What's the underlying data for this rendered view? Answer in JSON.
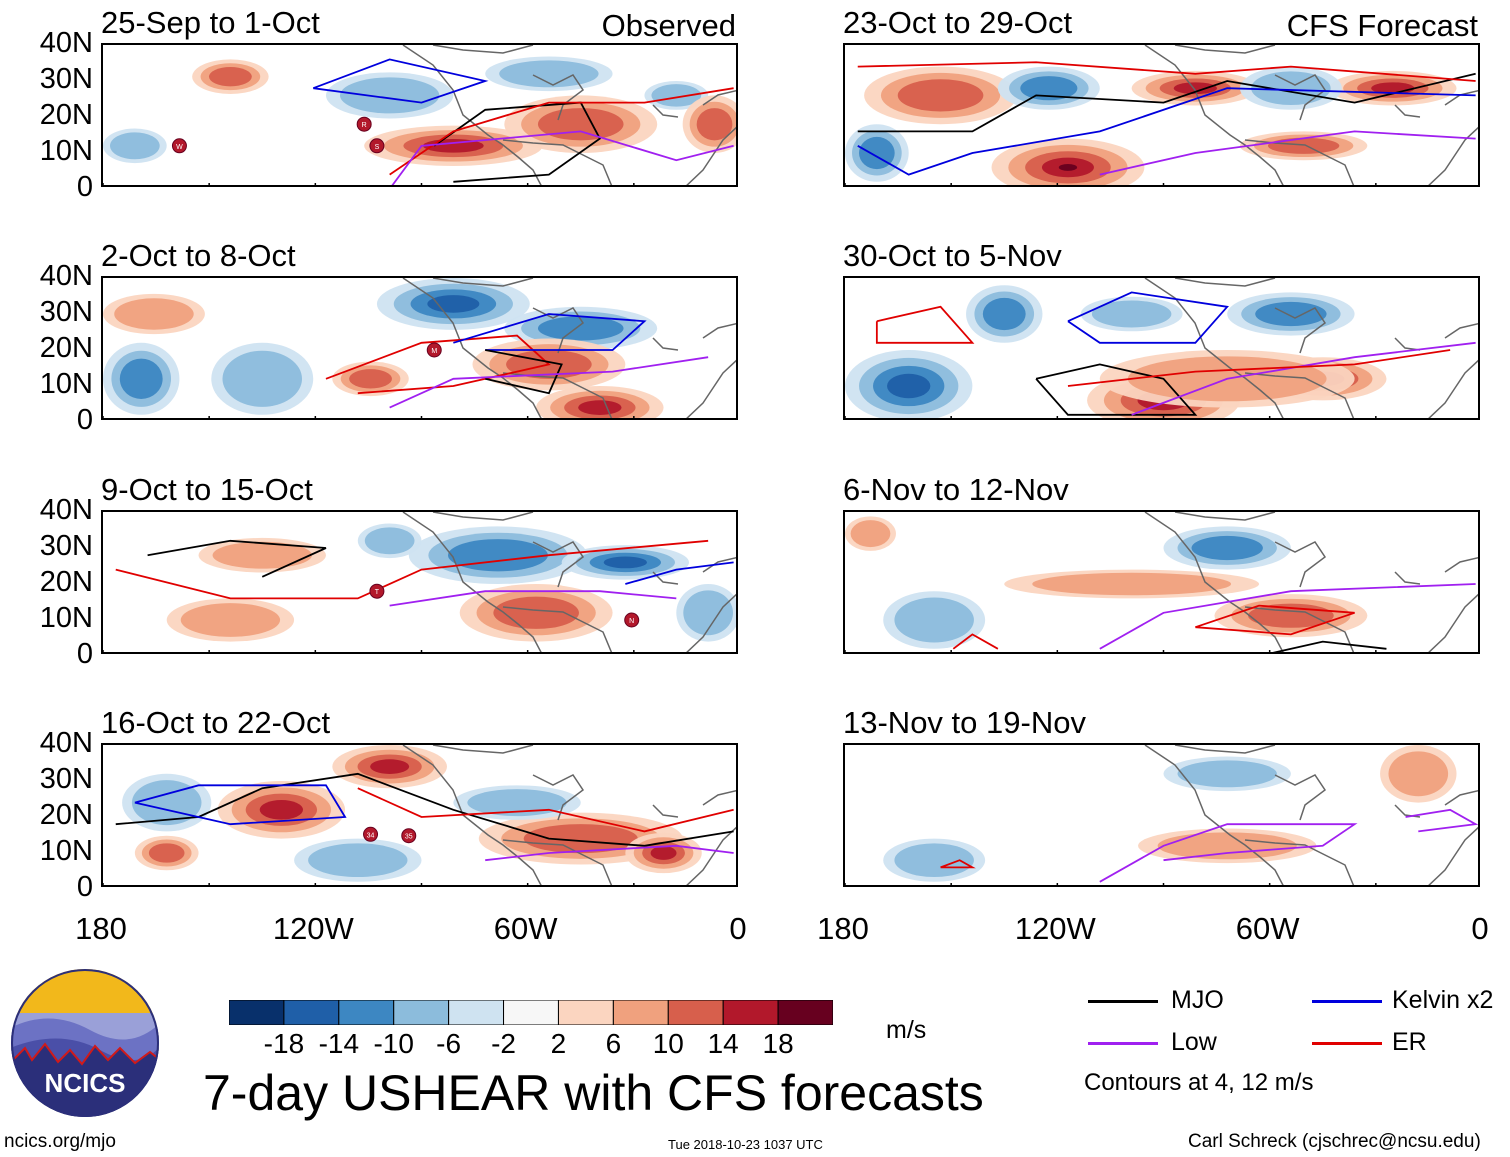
{
  "title": "7-day USHEAR with CFS forecasts",
  "units": "m/s",
  "left_column_label": "Observed",
  "right_column_label": "CFS Forecast",
  "panels": {
    "observed": [
      "25-Sep to 1-Oct",
      "2-Oct to 8-Oct",
      "9-Oct to 15-Oct",
      "16-Oct to 22-Oct"
    ],
    "forecast": [
      "23-Oct to 29-Oct",
      "30-Oct to 5-Nov",
      "6-Nov to 12-Nov",
      "13-Nov to 19-Nov"
    ]
  },
  "lat_labels": [
    "40N",
    "30N",
    "20N",
    "10N",
    "0"
  ],
  "lon_labels": [
    "180",
    "120W",
    "60W",
    "0"
  ],
  "colorbar": {
    "labels": [
      "-18",
      "-14",
      "-10",
      "-6",
      "-2",
      "2",
      "6",
      "10",
      "14",
      "18"
    ],
    "colors": [
      "#08306b",
      "#1f5fa8",
      "#3d87c2",
      "#8cbcdc",
      "#cfe3f1",
      "#f7f7f7",
      "#fbd5c0",
      "#f0a17e",
      "#d75f4c",
      "#b2182b",
      "#67001f"
    ]
  },
  "legend": {
    "items": [
      {
        "label": "MJO",
        "color": "#000000"
      },
      {
        "label": "Kelvin x2",
        "color": "#0000dd"
      },
      {
        "label": "Low",
        "color": "#a020f0"
      },
      {
        "label": "ER",
        "color": "#e00000"
      }
    ],
    "note": "Contours at 4, 12 m/s"
  },
  "logo_text": "NCICS",
  "footer": {
    "website": "ncics.org/mjo",
    "timestamp": "Tue 2018-10-23 1037 UTC",
    "author": "Carl Schreck (cjschrec@ncsu.edu)"
  },
  "storm_markers": {
    "p0": [
      "W",
      "R",
      "S"
    ],
    "p1": [
      "M"
    ],
    "p2": [
      "T",
      "N"
    ],
    "p3": [
      "34",
      "35"
    ]
  }
}
